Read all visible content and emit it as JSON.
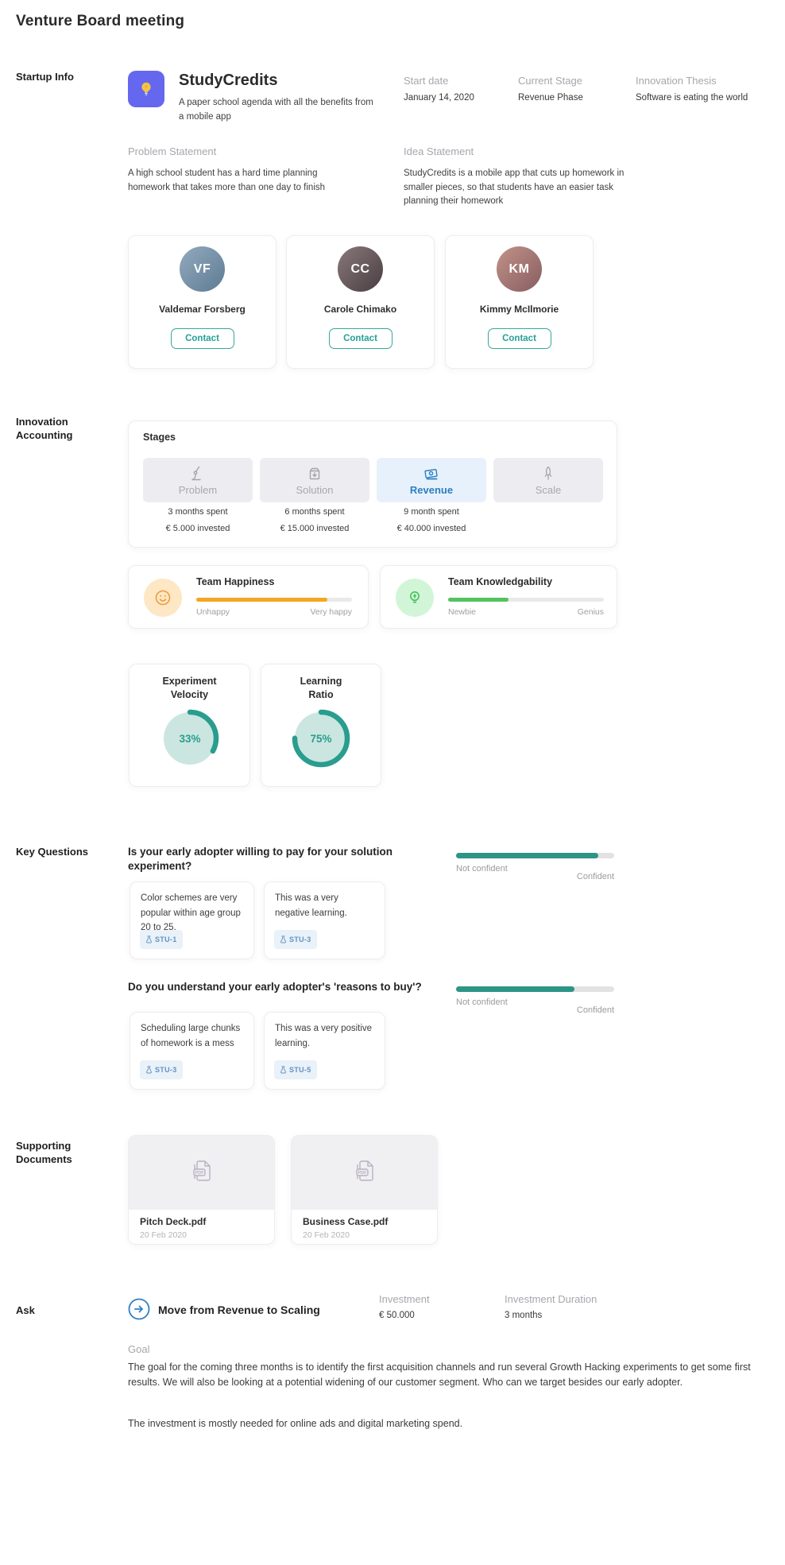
{
  "page": {
    "title": "Venture Board meeting"
  },
  "startup_info": {
    "section_label": "Startup Info",
    "company": {
      "name": "StudyCredits",
      "tagline": "A paper school agenda with all the benefits from a mobile app"
    },
    "fields": [
      {
        "label": "Start date",
        "value": "January 14, 2020"
      },
      {
        "label": "Current Stage",
        "value": "Revenue Phase"
      },
      {
        "label": "Innovation Thesis",
        "value": "Software is eating the world"
      }
    ],
    "problem": {
      "label": "Problem Statement",
      "text": "A high school student has a hard time planning homework that takes more than one day to finish"
    },
    "idea": {
      "label": "Idea Statement",
      "text": "StudyCredits is a mobile app that cuts up homework in smaller pieces, so that students have an easier task planning their homework"
    },
    "team": [
      {
        "name": "Valdemar Forsberg",
        "initials": "VF",
        "button_label": "Contact"
      },
      {
        "name": "Carole Chimako",
        "initials": "CC",
        "button_label": "Contact"
      },
      {
        "name": "Kimmy McIlmorie",
        "initials": "KM",
        "button_label": "Contact"
      }
    ]
  },
  "innovation_accounting": {
    "section_label_line1": "Innovation",
    "section_label_line2": "Accounting",
    "stages": {
      "title": "Stages",
      "items": [
        {
          "label": "Problem",
          "active": false,
          "months": "3 months spent",
          "invested": "€ 5.000 invested"
        },
        {
          "label": "Solution",
          "active": false,
          "months": "6 months spent",
          "invested": "€ 15.000 invested"
        },
        {
          "label": "Revenue",
          "active": true,
          "months": "9 month spent",
          "invested": "€ 40.000 invested"
        },
        {
          "label": "Scale",
          "active": false,
          "months": "",
          "invested": ""
        }
      ]
    },
    "metrics": [
      {
        "title": "Team Happiness",
        "low_label": "Unhappy",
        "high_label": "Very happy",
        "percent": 84,
        "color": "#f5a623"
      },
      {
        "title": "Team Knowledgability",
        "low_label": "Newbie",
        "high_label": "Genius",
        "percent": 39,
        "color": "#52c35f"
      }
    ],
    "gauges": [
      {
        "title_line1": "Experiment",
        "title_line2": "Velocity",
        "percent": 33,
        "display": "33%"
      },
      {
        "title_line1": "Learning",
        "title_line2": "Ratio",
        "percent": 75,
        "display": "75%"
      }
    ]
  },
  "key_questions": {
    "section_label": "Key Questions",
    "confidence_scale": {
      "low": "Not confident",
      "high": "Confident"
    },
    "questions": [
      {
        "text": "Is your early adopter willing to pay for your solution experiment?",
        "confidence_percent": 90,
        "learnings": [
          {
            "text": "Color schemes are very popular within age group 20 to 25.",
            "tag": "STU-1"
          },
          {
            "text": "This was a very negative learning.",
            "tag": "STU-3"
          }
        ]
      },
      {
        "text": "Do you understand your early adopter's 'reasons to buy'?",
        "confidence_percent": 75,
        "learnings": [
          {
            "text": "Scheduling large chunks of homework is a mess",
            "tag": "STU-3"
          },
          {
            "text": "This was a very positive learning.",
            "tag": "STU-5"
          }
        ]
      }
    ]
  },
  "supporting_documents": {
    "section_label_line1": "Supporting",
    "section_label_line2": "Documents",
    "documents": [
      {
        "name": "Pitch Deck.pdf",
        "date": "20 Feb 2020"
      },
      {
        "name": "Business Case.pdf",
        "date": "20 Feb 2020"
      }
    ]
  },
  "ask": {
    "section_label": "Ask",
    "title": "Move from Revenue to Scaling",
    "investment": {
      "label": "Investment",
      "value": "€ 50.000"
    },
    "duration": {
      "label": "Investment Duration",
      "value": "3 months"
    },
    "goal": {
      "label": "Goal",
      "paragraph1": "The goal for the coming three months is to identify the first acquisition channels and run several Growth Hacking experiments to get some first results. We will also be looking at a potential widening of our customer segment. Who can we target besides our early adopter.",
      "paragraph2": "The investment is mostly needed for online ads and digital marketing spend."
    }
  },
  "icons": {
    "logo": "lightbulb-icon",
    "stage_problem": "microscope-icon",
    "stage_solution": "gift-box-arrow-icon",
    "stage_revenue": "money-icon",
    "stage_scale": "rocket-icon",
    "happiness": "smiley-icon",
    "knowledgability": "lightbulb-outline-icon",
    "learning_tag": "flask-icon",
    "document": "pdf-file-icon",
    "ask": "arrow-right-circle-icon"
  },
  "colors": {
    "accent_teal": "#2a9d8f",
    "accent_orange": "#f5a623",
    "accent_green": "#52c35f",
    "accent_blue": "#2d7fc1",
    "accent_purple": "#6568ee",
    "label_gray": "#a8a5ac"
  }
}
